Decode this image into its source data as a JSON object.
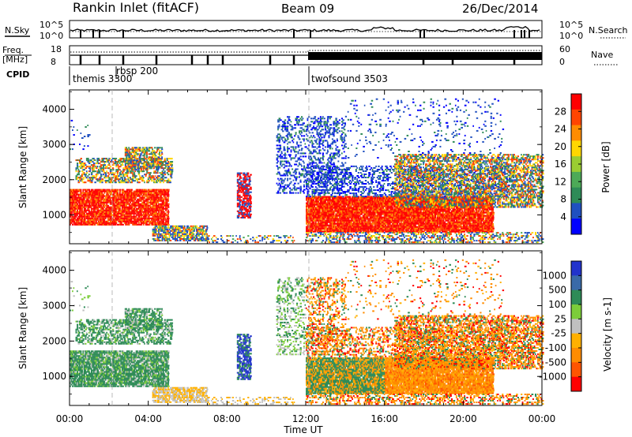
{
  "header": {
    "station": "Rankin Inlet (fitACF)",
    "beam": "Beam 09",
    "date": "26/Dec/2014"
  },
  "top_panels": {
    "nsky_label": "N.Sky",
    "nsearch_label": "N.Search",
    "noise_ticks_left": [
      "10^5",
      "10^0"
    ],
    "noise_ticks_right": [
      "10^5",
      "10^0"
    ],
    "freq_label_line1": "Freq.",
    "freq_label_line2": "[MHz]",
    "freq_ticks": [
      "18",
      "8"
    ],
    "nave_label": "Nave",
    "nave_ticks": [
      "60",
      "0"
    ],
    "cpid_label": "CPID",
    "cpid_entries": [
      {
        "label": "themis 3300",
        "start_hour": 0.0
      },
      {
        "label": "rbsp 200",
        "start_hour": 1.95
      },
      {
        "label": "twofsound 3503",
        "start_hour": 11.95
      }
    ]
  },
  "chart_data": [
    {
      "type": "heatmap",
      "name": "power",
      "xlabel": "",
      "ylabel": "Slant Range [km]",
      "x_ticks": [
        "00:00",
        "04:00",
        "08:00",
        "12:00",
        "16:00",
        "20:00",
        "00:00"
      ],
      "x_range_hours": [
        0,
        24
      ],
      "y_ticks": [
        "1000",
        "2000",
        "3000",
        "4000"
      ],
      "y_range_km": [
        180,
        4550
      ],
      "colorbar": {
        "label": "Power [dB]",
        "ticks": [
          "4",
          "8",
          "12",
          "16",
          "20",
          "24",
          "28"
        ],
        "range": [
          0,
          32
        ],
        "colors": [
          "#0000ff",
          "#2050c0",
          "#2e8b57",
          "#4daa57",
          "#9acd32",
          "#ffd700",
          "#ff8c00",
          "#ff4500",
          "#ff0000"
        ]
      }
    },
    {
      "type": "heatmap",
      "name": "velocity",
      "xlabel": "Time UT",
      "ylabel": "Slant Range [km]",
      "x_ticks": [
        "00:00",
        "04:00",
        "08:00",
        "12:00",
        "16:00",
        "20:00",
        "00:00"
      ],
      "x_range_hours": [
        0,
        24
      ],
      "y_ticks": [
        "1000",
        "2000",
        "3000",
        "4000"
      ],
      "y_range_km": [
        180,
        4550
      ],
      "colorbar": {
        "label": "Velocity [m s-1]",
        "ticks": [
          "1000",
          "500",
          "100",
          "25",
          "-25",
          "-100",
          "-500",
          "-1000"
        ],
        "colors": [
          "#2233cc",
          "#3a6aa8",
          "#2e8b57",
          "#7ccd3a",
          "#c0c0c0",
          "#ffb000",
          "#ff8c00",
          "#ff5500",
          "#ff0000"
        ]
      }
    }
  ]
}
